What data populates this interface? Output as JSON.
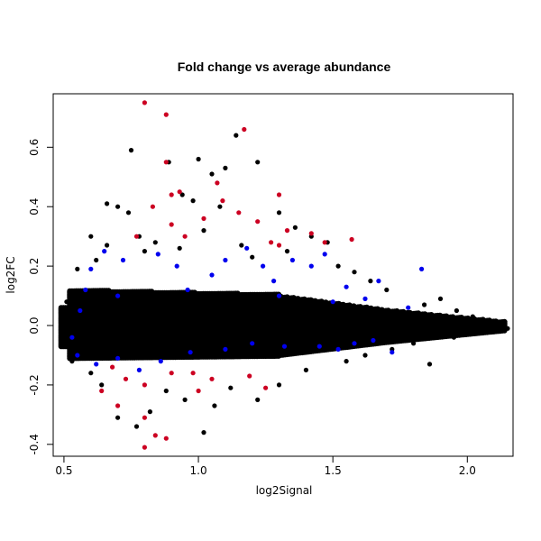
{
  "chart_data": {
    "type": "scatter",
    "title": "Fold change vs average abundance",
    "xlabel": "log2Signal",
    "ylabel": "log2FC",
    "xlim": [
      0.46,
      2.17
    ],
    "ylim": [
      -0.44,
      0.78
    ],
    "x_ticks": [
      "0.5",
      "1.0",
      "1.5",
      "2.0"
    ],
    "x_tick_values": [
      0.5,
      1.0,
      1.5,
      2.0
    ],
    "y_ticks": [
      "-0.4",
      "-0.2",
      "0.0",
      "0.2",
      "0.4",
      "0.6"
    ],
    "y_tick_values": [
      -0.4,
      -0.2,
      0.0,
      0.2,
      0.4,
      0.6
    ],
    "grid": false,
    "legend": "none",
    "colors": {
      "black": "#000000",
      "blue": "#0000ee",
      "red": "#cc0022"
    },
    "series": [
      {
        "color": "black",
        "points": [
          [
            0.75,
            0.59
          ],
          [
            0.89,
            0.55
          ],
          [
            1.0,
            0.56
          ],
          [
            1.05,
            0.51
          ],
          [
            1.1,
            0.53
          ],
          [
            1.14,
            0.64
          ],
          [
            1.22,
            0.55
          ],
          [
            0.66,
            0.41
          ],
          [
            0.7,
            0.4
          ],
          [
            0.94,
            0.44
          ],
          [
            0.98,
            0.42
          ],
          [
            1.08,
            0.4
          ],
          [
            0.6,
            0.3
          ],
          [
            0.66,
            0.27
          ],
          [
            0.74,
            0.38
          ],
          [
            0.78,
            0.3
          ],
          [
            1.3,
            0.38
          ],
          [
            1.36,
            0.33
          ],
          [
            1.42,
            0.3
          ],
          [
            0.55,
            0.19
          ],
          [
            0.62,
            0.22
          ],
          [
            0.8,
            0.25
          ],
          [
            0.84,
            0.28
          ],
          [
            0.93,
            0.26
          ],
          [
            1.02,
            0.32
          ],
          [
            1.16,
            0.27
          ],
          [
            1.2,
            0.23
          ],
          [
            1.33,
            0.25
          ],
          [
            1.48,
            0.28
          ],
          [
            1.52,
            0.2
          ],
          [
            1.58,
            0.18
          ],
          [
            1.64,
            0.15
          ],
          [
            1.7,
            0.12
          ],
          [
            1.84,
            0.07
          ],
          [
            1.9,
            0.09
          ],
          [
            1.96,
            0.05
          ],
          [
            2.02,
            0.03
          ],
          [
            2.08,
            0.01
          ],
          [
            2.12,
            0.0
          ],
          [
            2.15,
            -0.01
          ],
          [
            0.7,
            -0.31
          ],
          [
            0.77,
            -0.34
          ],
          [
            0.82,
            -0.29
          ],
          [
            0.95,
            -0.25
          ],
          [
            1.02,
            -0.36
          ],
          [
            1.06,
            -0.27
          ],
          [
            1.12,
            -0.21
          ],
          [
            1.22,
            -0.25
          ],
          [
            1.3,
            -0.2
          ],
          [
            0.6,
            -0.16
          ],
          [
            0.64,
            -0.2
          ],
          [
            0.88,
            -0.22
          ],
          [
            1.4,
            -0.15
          ],
          [
            1.55,
            -0.12
          ],
          [
            1.62,
            -0.1
          ],
          [
            1.72,
            -0.08
          ],
          [
            1.8,
            -0.06
          ],
          [
            1.95,
            -0.04
          ],
          [
            1.86,
            -0.13
          ],
          [
            0.52,
            -0.07
          ],
          [
            0.51,
            0.08
          ],
          [
            0.52,
            0.05
          ],
          [
            0.5,
            -0.05
          ],
          [
            0.53,
            -0.12
          ],
          [
            0.57,
            0.11
          ]
        ]
      },
      {
        "color": "blue",
        "points": [
          [
            0.6,
            0.19
          ],
          [
            0.65,
            0.25
          ],
          [
            0.72,
            0.22
          ],
          [
            0.85,
            0.24
          ],
          [
            0.92,
            0.2
          ],
          [
            1.05,
            0.17
          ],
          [
            1.1,
            0.22
          ],
          [
            1.18,
            0.26
          ],
          [
            1.24,
            0.2
          ],
          [
            1.28,
            0.15
          ],
          [
            1.35,
            0.22
          ],
          [
            1.42,
            0.2
          ],
          [
            1.47,
            0.24
          ],
          [
            1.55,
            0.13
          ],
          [
            1.62,
            0.09
          ],
          [
            1.67,
            0.15
          ],
          [
            1.78,
            0.06
          ],
          [
            1.83,
            0.19
          ],
          [
            0.58,
            0.12
          ],
          [
            0.7,
            0.1
          ],
          [
            0.96,
            0.12
          ],
          [
            1.3,
            0.1
          ],
          [
            1.5,
            0.08
          ],
          [
            0.55,
            -0.1
          ],
          [
            0.62,
            -0.13
          ],
          [
            0.7,
            -0.11
          ],
          [
            0.78,
            -0.15
          ],
          [
            0.86,
            -0.12
          ],
          [
            0.97,
            -0.09
          ],
          [
            1.1,
            -0.08
          ],
          [
            1.2,
            -0.06
          ],
          [
            1.32,
            -0.07
          ],
          [
            1.45,
            -0.07
          ],
          [
            1.52,
            -0.08
          ],
          [
            1.58,
            -0.06
          ],
          [
            1.65,
            -0.05
          ],
          [
            1.72,
            -0.09
          ],
          [
            0.53,
            -0.04
          ],
          [
            0.56,
            0.05
          ]
        ]
      },
      {
        "color": "red",
        "points": [
          [
            0.8,
            0.75
          ],
          [
            0.88,
            0.71
          ],
          [
            1.17,
            0.66
          ],
          [
            0.88,
            0.55
          ],
          [
            1.07,
            0.48
          ],
          [
            0.9,
            0.44
          ],
          [
            0.93,
            0.45
          ],
          [
            1.09,
            0.42
          ],
          [
            1.3,
            0.44
          ],
          [
            0.83,
            0.4
          ],
          [
            1.02,
            0.36
          ],
          [
            1.15,
            0.38
          ],
          [
            1.22,
            0.35
          ],
          [
            1.33,
            0.32
          ],
          [
            1.42,
            0.31
          ],
          [
            0.77,
            0.3
          ],
          [
            0.9,
            0.34
          ],
          [
            0.95,
            0.3
          ],
          [
            1.27,
            0.28
          ],
          [
            1.3,
            0.27
          ],
          [
            1.47,
            0.28
          ],
          [
            1.57,
            0.29
          ],
          [
            0.68,
            -0.14
          ],
          [
            0.73,
            -0.18
          ],
          [
            0.8,
            -0.2
          ],
          [
            0.9,
            -0.16
          ],
          [
            0.98,
            -0.16
          ],
          [
            1.05,
            -0.18
          ],
          [
            1.19,
            -0.17
          ],
          [
            1.25,
            -0.21
          ],
          [
            0.64,
            -0.22
          ],
          [
            0.7,
            -0.27
          ],
          [
            0.8,
            -0.31
          ],
          [
            0.84,
            -0.37
          ],
          [
            0.88,
            -0.38
          ],
          [
            0.8,
            -0.41
          ],
          [
            1.0,
            -0.22
          ]
        ]
      }
    ]
  }
}
